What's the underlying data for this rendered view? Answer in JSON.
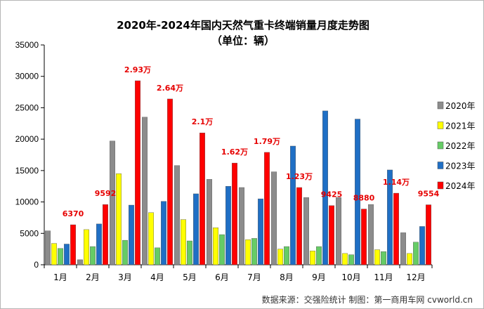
{
  "chart_data": {
    "type": "bar",
    "title": "2020年-2024年国内天然气重卡终端销量月度走势图",
    "subtitle": "（单位：辆）",
    "categories": [
      "1月",
      "2月",
      "3月",
      "4月",
      "5月",
      "6月",
      "7月",
      "8月",
      "9月",
      "10月",
      "11月",
      "12月"
    ],
    "series": [
      {
        "name": "2020年",
        "color": "#8c8c8c",
        "values": [
          5400,
          800,
          19700,
          23500,
          15800,
          13600,
          12300,
          14800,
          10700,
          10700,
          9600,
          5100
        ]
      },
      {
        "name": "2021年",
        "color": "#ffff00",
        "values": [
          3400,
          5600,
          14500,
          8300,
          7200,
          5900,
          4000,
          2500,
          2200,
          1800,
          2400,
          1800
        ]
      },
      {
        "name": "2022年",
        "color": "#66cc66",
        "values": [
          2600,
          2900,
          3900,
          2700,
          3800,
          4800,
          4200,
          2900,
          2900,
          1600,
          2100,
          3600
        ]
      },
      {
        "name": "2023年",
        "color": "#1f6fc5",
        "values": [
          3300,
          6500,
          9500,
          10100,
          11300,
          12500,
          10500,
          18900,
          24500,
          23200,
          15100,
          6100
        ]
      },
      {
        "name": "2024年",
        "color": "#ff0000",
        "values": [
          6370,
          9592,
          29300,
          26400,
          21000,
          16200,
          17900,
          12300,
          9425,
          8880,
          11400,
          9554
        ]
      }
    ],
    "data_labels_2024": [
      "6370",
      "9592",
      "2.93万",
      "2.64万",
      "2.1万",
      "1.62万",
      "1.79万",
      "1.23万",
      "9425",
      "8880",
      "1.14万",
      "9554"
    ],
    "yticks": [
      "0",
      "5000",
      "10000",
      "15000",
      "20000",
      "25000",
      "30000",
      "35000"
    ],
    "ylim": [
      0,
      35000
    ],
    "legend_position": "right",
    "grid": false
  },
  "source_note": "数据来源：交强险统计  制图：第一商用车网 cvworld.cn"
}
